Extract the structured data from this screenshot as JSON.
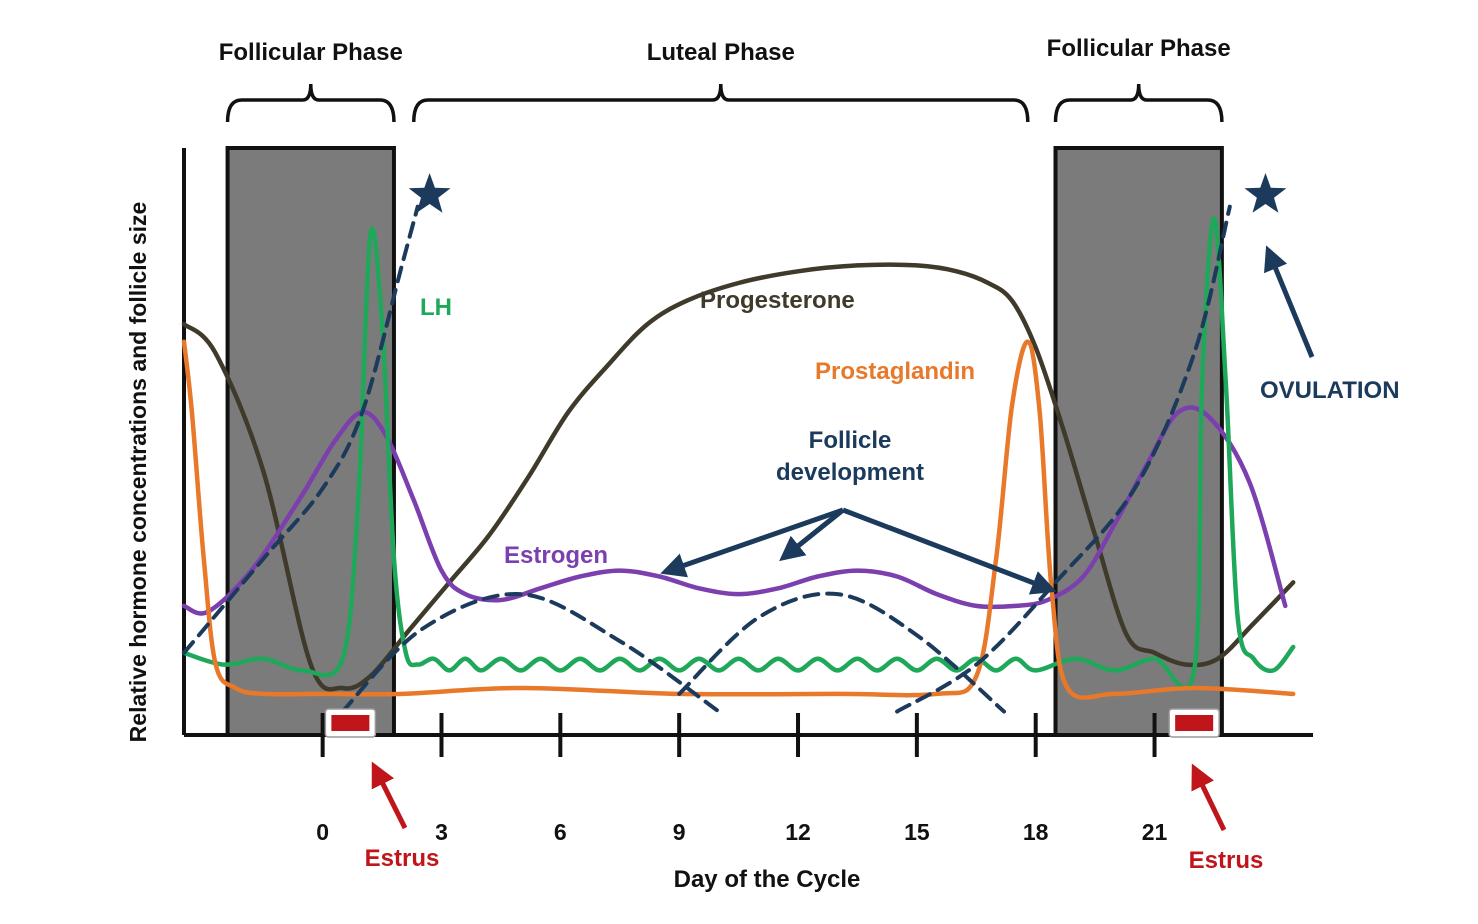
{
  "chart_data": {
    "type": "line",
    "title": "",
    "xlabel": "Day of the Cycle",
    "ylabel": "Relative hormone concentrations and follicle size",
    "x_ticks": [
      0,
      3,
      6,
      9,
      12,
      15,
      18,
      21
    ],
    "x_tick_labels": [
      "0",
      "3",
      "6",
      "9",
      "12",
      "15",
      "18",
      "21"
    ],
    "xlim": [
      -3.5,
      25
    ],
    "ylim": [
      0,
      1
    ],
    "grid": false,
    "legend": "none (series labelled directly on the plot)",
    "phases": [
      {
        "label": "Follicular Phase",
        "start": -2.4,
        "end": 1.8,
        "shaded": true
      },
      {
        "label": "Luteal Phase",
        "start": 2.3,
        "end": 17.8,
        "shaded": false
      },
      {
        "label": "Follicular Phase",
        "start": 18.5,
        "end": 22.7,
        "shaded": true
      }
    ],
    "series": [
      {
        "name": "Progesterone",
        "color": "#3f3a2a",
        "x": [
          -3.5,
          -2.7,
          -1.5,
          -0.3,
          0.5,
          1.2,
          2.2,
          3.2,
          4.2,
          5.2,
          6.2,
          7.2,
          8.2,
          9.2,
          10.5,
          12,
          13.5,
          15,
          16,
          16.8,
          17.4,
          18,
          18.7,
          19.5,
          20.3,
          21,
          21.8,
          22.6,
          23.5,
          24.5
        ],
        "y": [
          0.7,
          0.65,
          0.45,
          0.12,
          0.08,
          0.1,
          0.18,
          0.26,
          0.34,
          0.44,
          0.55,
          0.63,
          0.7,
          0.74,
          0.77,
          0.79,
          0.8,
          0.8,
          0.79,
          0.77,
          0.74,
          0.66,
          0.52,
          0.34,
          0.17,
          0.14,
          0.12,
          0.13,
          0.19,
          0.26
        ]
      },
      {
        "name": "Estrogen",
        "color": "#7b3fae",
        "x": [
          -3.5,
          -2.9,
          -1.8,
          -0.6,
          0.3,
          1.0,
          1.6,
          2.3,
          3.0,
          3.6,
          4.5,
          5.5,
          6.5,
          7.5,
          8.5,
          9.5,
          10.5,
          11.5,
          12.5,
          13.5,
          14.5,
          15.5,
          16.5,
          17.5,
          18.3,
          19.2,
          20,
          20.8,
          21.6,
          22.4,
          23.4,
          24.3
        ],
        "y": [
          0.22,
          0.21,
          0.28,
          0.4,
          0.5,
          0.55,
          0.51,
          0.4,
          0.28,
          0.24,
          0.23,
          0.25,
          0.27,
          0.28,
          0.27,
          0.25,
          0.24,
          0.25,
          0.27,
          0.28,
          0.27,
          0.24,
          0.22,
          0.22,
          0.23,
          0.27,
          0.36,
          0.46,
          0.55,
          0.54,
          0.43,
          0.22
        ]
      },
      {
        "name": "LH",
        "color": "#1fa85a",
        "x": [
          -3.5,
          -2.5,
          -1.5,
          -0.5,
          0.5,
          0.9,
          1.2,
          1.5,
          1.8,
          2.1,
          2.4,
          2.8,
          3.2,
          3.6,
          4.0,
          4.5,
          5.0,
          5.5,
          6.0,
          6.5,
          7.0,
          7.5,
          8.0,
          8.5,
          9.0,
          9.5,
          10.0,
          10.5,
          11.0,
          11.5,
          12.0,
          12.5,
          13.0,
          13.5,
          14.0,
          14.5,
          15.0,
          15.5,
          16.0,
          16.5,
          17.0,
          17.5,
          18.0,
          19.0,
          20.0,
          21.0,
          22.0,
          22.2,
          22.5,
          22.8,
          23.1,
          23.5,
          24.0,
          24.5
        ],
        "y": [
          0.14,
          0.12,
          0.13,
          0.11,
          0.13,
          0.4,
          0.85,
          0.7,
          0.3,
          0.14,
          0.12,
          0.13,
          0.11,
          0.13,
          0.11,
          0.13,
          0.11,
          0.13,
          0.11,
          0.13,
          0.11,
          0.13,
          0.11,
          0.13,
          0.11,
          0.13,
          0.11,
          0.13,
          0.11,
          0.13,
          0.11,
          0.13,
          0.11,
          0.13,
          0.11,
          0.13,
          0.11,
          0.13,
          0.11,
          0.13,
          0.11,
          0.13,
          0.11,
          0.13,
          0.11,
          0.13,
          0.11,
          0.6,
          0.88,
          0.6,
          0.2,
          0.13,
          0.11,
          0.15
        ]
      },
      {
        "name": "Prostaglandin",
        "color": "#e8782a",
        "x": [
          -3.5,
          -3.3,
          -3.0,
          -2.7,
          -2.2,
          -1.5,
          0,
          2,
          5,
          9,
          13,
          15.5,
          16.5,
          17.0,
          17.4,
          17.8,
          18.1,
          18.4,
          18.8,
          20,
          22,
          24.5
        ],
        "y": [
          0.67,
          0.55,
          0.3,
          0.12,
          0.08,
          0.07,
          0.07,
          0.07,
          0.08,
          0.07,
          0.07,
          0.07,
          0.1,
          0.3,
          0.56,
          0.67,
          0.55,
          0.25,
          0.08,
          0.07,
          0.08,
          0.07
        ]
      },
      {
        "name": "Follicle development",
        "color": "#1b3a5c",
        "dashed": true,
        "segments": [
          {
            "x": [
              -3.5,
              -1.5,
              0,
              1.0,
              2.0,
              2.4
            ],
            "y": [
              0.14,
              0.3,
              0.42,
              0.55,
              0.8,
              0.9
            ]
          },
          {
            "x": [
              0.5,
              2.5,
              5,
              7.5,
              10.0
            ],
            "y": [
              0.04,
              0.18,
              0.24,
              0.16,
              0.04
            ]
          },
          {
            "x": [
              9.0,
              11,
              13,
              15,
              17.2
            ],
            "y": [
              0.07,
              0.2,
              0.24,
              0.17,
              0.04
            ]
          },
          {
            "x": [
              14.5,
              16.5,
              18.5,
              20.5,
              22.0,
              22.9
            ],
            "y": [
              0.04,
              0.12,
              0.26,
              0.42,
              0.65,
              0.9
            ]
          }
        ]
      }
    ],
    "annotations": [
      {
        "text": "LH",
        "color": "#1fa85a"
      },
      {
        "text": "Progesterone",
        "color": "#3f3a2a"
      },
      {
        "text": "Prostaglandin",
        "color": "#e8782a"
      },
      {
        "text": "Estrogen",
        "color": "#7b3fae"
      },
      {
        "text_lines": [
          "Follicle",
          "development"
        ],
        "color": "#1b3a5c"
      },
      {
        "text": "OVULATION",
        "color": "#1b3a5c"
      },
      {
        "text": "Estrus",
        "color": "#c0151a",
        "day": 0.7
      },
      {
        "text": "Estrus",
        "color": "#c0151a",
        "day": 22.0
      }
    ],
    "markers": [
      {
        "type": "ovulation-star",
        "day": 2.7,
        "y": 0.92,
        "color": "#1b3a5c"
      },
      {
        "type": "ovulation-star",
        "day": 23.8,
        "y": 0.92,
        "color": "#1b3a5c"
      },
      {
        "type": "estrus-box",
        "day": 0.7,
        "color": "#c0151a"
      },
      {
        "type": "estrus-box",
        "day": 22.0,
        "color": "#c0151a"
      }
    ]
  }
}
